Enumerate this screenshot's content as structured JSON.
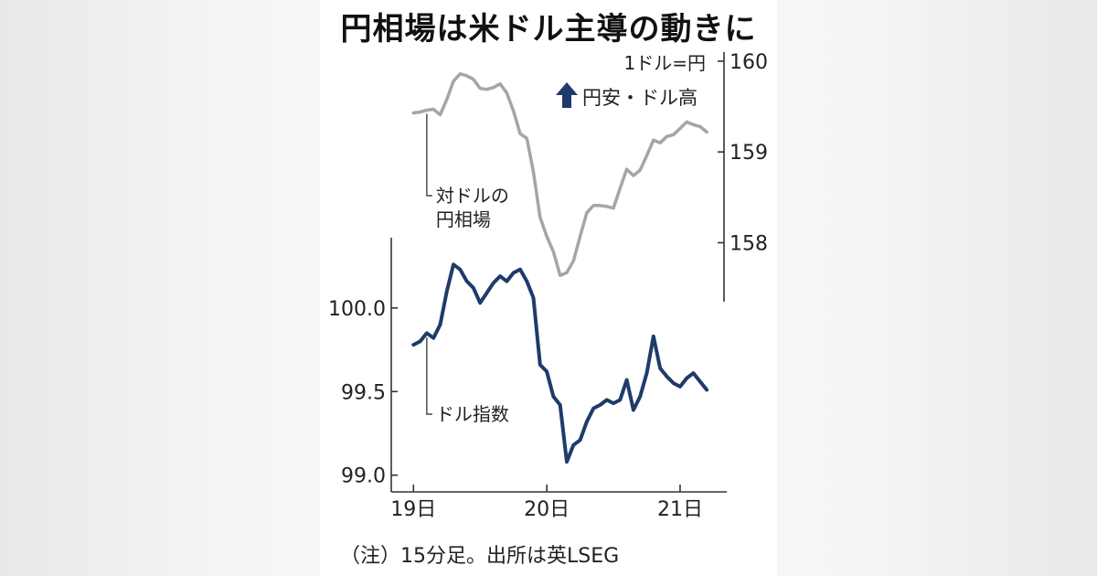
{
  "title": "円相場は米ドル主導の動きに",
  "note": "（注）15分足。出所は英LSEG",
  "colors": {
    "yen": "#a5a5a5",
    "dxy": "#1f3b6b",
    "axis": "#333333",
    "arrow": "#1f3b6b"
  },
  "chart_data": [
    {
      "type": "line",
      "series": [
        {
          "name": "対ドルの円相場"
        }
      ],
      "series_label": [
        "対ドルの",
        "円相場"
      ],
      "unit_label": "1ドル=円",
      "note_label": "円安・ドル高",
      "note_icon": "up-arrow-icon",
      "y_axis_side": "right",
      "ylim": [
        157.35,
        160.1
      ],
      "yticks": [
        160,
        159,
        158
      ],
      "ytick_labels": [
        "160",
        "159",
        "158"
      ],
      "x": [
        0,
        0.05,
        0.1,
        0.15,
        0.2,
        0.25,
        0.3,
        0.35,
        0.4,
        0.45,
        0.5,
        0.55,
        0.6,
        0.65,
        0.7,
        0.75,
        0.8,
        0.85,
        0.9,
        0.95,
        1.0,
        1.05,
        1.1,
        1.15,
        1.2,
        1.25,
        1.3,
        1.35,
        1.4,
        1.45,
        1.5,
        1.55,
        1.6,
        1.65,
        1.7,
        1.75,
        1.8,
        1.85,
        1.9,
        1.95,
        2.0,
        2.05,
        2.1,
        2.15,
        2.2
      ],
      "values": [
        159.43,
        159.44,
        159.46,
        159.47,
        159.41,
        159.58,
        159.78,
        159.86,
        159.84,
        159.8,
        159.7,
        159.69,
        159.71,
        159.75,
        159.65,
        159.45,
        159.2,
        159.15,
        158.78,
        158.28,
        158.07,
        157.9,
        157.64,
        157.67,
        157.8,
        158.07,
        158.33,
        158.41,
        158.41,
        158.4,
        158.38,
        158.6,
        158.81,
        158.74,
        158.8,
        158.96,
        159.13,
        159.1,
        159.17,
        159.19,
        159.26,
        159.33,
        159.3,
        159.28,
        159.22
      ]
    },
    {
      "type": "line",
      "series": [
        {
          "name": "ドル指数"
        }
      ],
      "y_axis_side": "left",
      "ylim": [
        98.9,
        100.42
      ],
      "yticks": [
        100.0,
        99.5,
        99.0
      ],
      "ytick_labels": [
        "100.0",
        "99.5",
        "99.0"
      ],
      "xticks": [
        0,
        1,
        2
      ],
      "xtick_labels": [
        "19日",
        "20日",
        "21日"
      ],
      "xlim": [
        -0.05,
        2.35
      ],
      "x": [
        0,
        0.05,
        0.1,
        0.15,
        0.2,
        0.25,
        0.3,
        0.35,
        0.4,
        0.45,
        0.5,
        0.55,
        0.6,
        0.65,
        0.7,
        0.75,
        0.8,
        0.85,
        0.9,
        0.95,
        1.0,
        1.05,
        1.1,
        1.15,
        1.2,
        1.25,
        1.3,
        1.35,
        1.4,
        1.45,
        1.5,
        1.55,
        1.6,
        1.65,
        1.7,
        1.75,
        1.8,
        1.85,
        1.9,
        1.95,
        2.0,
        2.05,
        2.1,
        2.15,
        2.2
      ],
      "values": [
        99.78,
        99.8,
        99.85,
        99.82,
        99.9,
        100.1,
        100.26,
        100.23,
        100.16,
        100.12,
        100.03,
        100.09,
        100.15,
        100.19,
        100.16,
        100.21,
        100.23,
        100.16,
        100.06,
        99.66,
        99.62,
        99.47,
        99.42,
        99.08,
        99.18,
        99.21,
        99.32,
        99.4,
        99.42,
        99.45,
        99.43,
        99.45,
        99.57,
        99.39,
        99.47,
        99.61,
        99.83,
        99.64,
        99.59,
        99.55,
        99.53,
        99.58,
        99.61,
        99.56,
        99.51
      ]
    }
  ]
}
